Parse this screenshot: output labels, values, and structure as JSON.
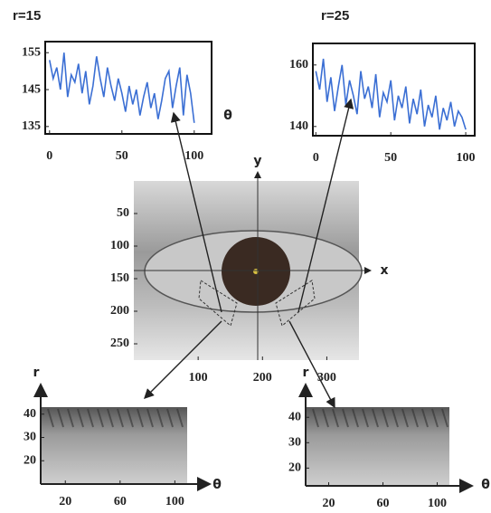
{
  "chart_data": [
    {
      "type": "line",
      "title": "r=15",
      "xlabel": "θ",
      "color": "#3b6fd4",
      "x": [
        0,
        2.5,
        5,
        7.5,
        10,
        12.5,
        15,
        17.5,
        20,
        22.5,
        25,
        27.5,
        30,
        32.5,
        35,
        37.5,
        40,
        42.5,
        45,
        47.5,
        50,
        52.5,
        55,
        57.5,
        60,
        62.5,
        65,
        67.5,
        70,
        72.5,
        75,
        77.5,
        80,
        82.5,
        85,
        87.5,
        90,
        92.5,
        95,
        97.5,
        100
      ],
      "values": [
        153,
        148,
        151,
        145,
        155,
        143,
        149,
        147,
        152,
        144,
        150,
        141,
        146,
        154,
        148,
        143,
        151,
        146,
        142,
        148,
        144,
        139,
        146,
        141,
        145,
        138,
        143,
        147,
        140,
        144,
        137,
        142,
        148,
        150,
        140,
        146,
        151,
        138,
        149,
        144,
        136
      ],
      "xlim": [
        -3,
        112
      ],
      "ylim": [
        133,
        158
      ],
      "xticks": [
        0,
        50,
        100
      ],
      "yticks": [
        135,
        145,
        155
      ]
    },
    {
      "type": "line",
      "title": "r=25",
      "color": "#3b6fd4",
      "x": [
        0,
        2.5,
        5,
        7.5,
        10,
        12.5,
        15,
        17.5,
        20,
        22.5,
        25,
        27.5,
        30,
        32.5,
        35,
        37.5,
        40,
        42.5,
        45,
        47.5,
        50,
        52.5,
        55,
        57.5,
        60,
        62.5,
        65,
        67.5,
        70,
        72.5,
        75,
        77.5,
        80,
        82.5,
        85,
        87.5,
        90,
        92.5,
        95,
        97.5,
        100
      ],
      "values": [
        158,
        152,
        162,
        148,
        156,
        145,
        153,
        160,
        147,
        155,
        150,
        144,
        158,
        149,
        153,
        146,
        157,
        143,
        151,
        148,
        155,
        142,
        150,
        146,
        153,
        141,
        149,
        144,
        152,
        140,
        147,
        143,
        150,
        139,
        146,
        142,
        148,
        140,
        145,
        143,
        139
      ],
      "xlim": [
        -2,
        106
      ],
      "ylim": [
        137,
        167
      ],
      "xticks": [
        0,
        50,
        100
      ],
      "yticks": [
        140,
        160
      ]
    },
    {
      "type": "image",
      "xlabel": "x",
      "ylabel": "y",
      "xlim": [
        0,
        350
      ],
      "ylim": [
        0,
        275
      ],
      "y_inverted": true,
      "xticks": [
        100,
        200,
        300
      ],
      "yticks": [
        50,
        100,
        150,
        200,
        250
      ]
    },
    {
      "type": "image",
      "xlabel": "θ",
      "ylabel": "r",
      "xlim": [
        2,
        109
      ],
      "ylim": [
        10,
        43
      ],
      "xticks": [
        20,
        60,
        100
      ],
      "yticks": [
        20,
        30,
        40
      ]
    },
    {
      "type": "image",
      "xlabel": "θ",
      "ylabel": "r",
      "xlim": [
        3,
        109
      ],
      "ylim": [
        13,
        44
      ],
      "xticks": [
        20,
        60,
        100
      ],
      "yticks": [
        20,
        30,
        40
      ]
    }
  ]
}
